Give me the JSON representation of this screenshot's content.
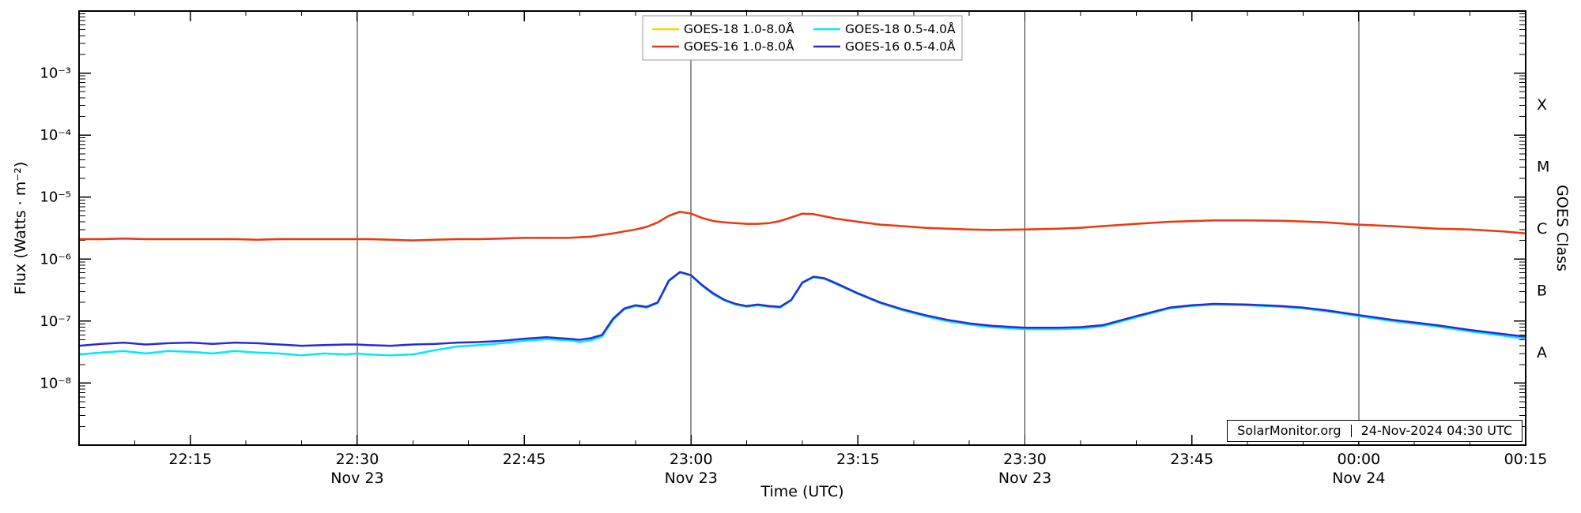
{
  "footer": {
    "site": "SolarMonitor.org",
    "timestamp": "24-Nov-2024 04:30 UTC"
  },
  "chart_data": {
    "type": "line",
    "title": "",
    "xlabel": "Time (UTC)",
    "ylabel": "Flux (Watts · m⁻²)",
    "ylabel_right": "GOES Class",
    "y_scale": "log",
    "ylim_log10": [
      -9,
      -2
    ],
    "xlim_minutes": [
      0,
      130
    ],
    "x_minor_step": 5,
    "legend_position": "top-center",
    "grid_color": "#2a2a2a",
    "x_ticks": [
      {
        "t": 10,
        "label": "22:15"
      },
      {
        "t": 25,
        "label": "22:30",
        "date": "Nov 23"
      },
      {
        "t": 40,
        "label": "22:45"
      },
      {
        "t": 55,
        "label": "23:00",
        "date": "Nov 23"
      },
      {
        "t": 70,
        "label": "23:15"
      },
      {
        "t": 85,
        "label": "23:30",
        "date": "Nov 23"
      },
      {
        "t": 100,
        "label": "23:45"
      },
      {
        "t": 115,
        "label": "00:00",
        "date": "Nov 24"
      },
      {
        "t": 130,
        "label": "00:15"
      }
    ],
    "gridline_ts": [
      25,
      55,
      85,
      115
    ],
    "y_ticks": [
      {
        "exp": -3,
        "label": "10⁻³"
      },
      {
        "exp": -4,
        "label": "10⁻⁴"
      },
      {
        "exp": -5,
        "label": "10⁻⁵"
      },
      {
        "exp": -6,
        "label": "10⁻⁶"
      },
      {
        "exp": -7,
        "label": "10⁻⁷"
      },
      {
        "exp": -8,
        "label": "10⁻⁸"
      }
    ],
    "class_ticks": [
      {
        "log": -3.5,
        "label": "X"
      },
      {
        "log": -4.5,
        "label": "M"
      },
      {
        "log": -5.5,
        "label": "C"
      },
      {
        "log": -6.5,
        "label": "B"
      },
      {
        "log": -7.5,
        "label": "A"
      }
    ],
    "x_minutes": [
      0,
      2,
      4,
      6,
      8,
      10,
      12,
      14,
      16,
      18,
      20,
      22,
      24,
      25,
      26,
      28,
      30,
      32,
      34,
      36,
      38,
      40,
      42,
      44,
      45,
      46,
      47,
      48,
      49,
      50,
      51,
      52,
      53,
      54,
      55,
      56,
      57,
      58,
      59,
      60,
      61,
      62,
      63,
      64,
      65,
      66,
      67,
      68,
      70,
      72,
      74,
      76,
      78,
      80,
      82,
      85,
      88,
      90,
      92,
      95,
      98,
      100,
      102,
      105,
      108,
      110,
      112,
      115,
      118,
      120,
      122,
      125,
      128,
      130
    ],
    "series": [
      {
        "name": "GOES-18 1.0-8.0Å",
        "color": "#ffd200",
        "values": [
          2.1e-06,
          2.1e-06,
          2.15e-06,
          2.1e-06,
          2.1e-06,
          2.1e-06,
          2.1e-06,
          2.1e-06,
          2.05e-06,
          2.1e-06,
          2.1e-06,
          2.1e-06,
          2.1e-06,
          2.1e-06,
          2.1e-06,
          2.05e-06,
          2e-06,
          2.05e-06,
          2.1e-06,
          2.1e-06,
          2.15e-06,
          2.2e-06,
          2.2e-06,
          2.2e-06,
          2.25e-06,
          2.3e-06,
          2.45e-06,
          2.6e-06,
          2.8e-06,
          3e-06,
          3.3e-06,
          3.9e-06,
          5e-06,
          5.8e-06,
          5.4e-06,
          4.6e-06,
          4.1e-06,
          3.9e-06,
          3.8e-06,
          3.7e-06,
          3.7e-06,
          3.8e-06,
          4.1e-06,
          4.7e-06,
          5.4e-06,
          5.3e-06,
          4.9e-06,
          4.5e-06,
          4e-06,
          3.6e-06,
          3.4e-06,
          3.2e-06,
          3.1e-06,
          3e-06,
          2.95e-06,
          3e-06,
          3.1e-06,
          3.2e-06,
          3.4e-06,
          3.7e-06,
          4e-06,
          4.1e-06,
          4.2e-06,
          4.2e-06,
          4.15e-06,
          4.05e-06,
          3.9e-06,
          3.6e-06,
          3.4e-06,
          3.25e-06,
          3.1e-06,
          3e-06,
          2.8e-06,
          2.6e-06
        ]
      },
      {
        "name": "GOES-16 1.0-8.0Å",
        "color": "#e8391c",
        "values": [
          2.1e-06,
          2.1e-06,
          2.15e-06,
          2.1e-06,
          2.1e-06,
          2.1e-06,
          2.1e-06,
          2.1e-06,
          2.05e-06,
          2.1e-06,
          2.1e-06,
          2.1e-06,
          2.1e-06,
          2.1e-06,
          2.1e-06,
          2.05e-06,
          2e-06,
          2.05e-06,
          2.1e-06,
          2.1e-06,
          2.15e-06,
          2.2e-06,
          2.2e-06,
          2.2e-06,
          2.25e-06,
          2.3e-06,
          2.45e-06,
          2.6e-06,
          2.8e-06,
          3e-06,
          3.3e-06,
          3.9e-06,
          5e-06,
          5.8e-06,
          5.4e-06,
          4.6e-06,
          4.1e-06,
          3.9e-06,
          3.8e-06,
          3.7e-06,
          3.7e-06,
          3.8e-06,
          4.1e-06,
          4.7e-06,
          5.4e-06,
          5.3e-06,
          4.9e-06,
          4.5e-06,
          4e-06,
          3.6e-06,
          3.4e-06,
          3.2e-06,
          3.1e-06,
          3e-06,
          2.95e-06,
          3e-06,
          3.1e-06,
          3.2e-06,
          3.4e-06,
          3.7e-06,
          4e-06,
          4.1e-06,
          4.2e-06,
          4.2e-06,
          4.15e-06,
          4.05e-06,
          3.9e-06,
          3.6e-06,
          3.4e-06,
          3.25e-06,
          3.1e-06,
          3e-06,
          2.8e-06,
          2.6e-06
        ]
      },
      {
        "name": "GOES-18 0.5-4.0Å",
        "color": "#00e8ff",
        "values": [
          2.9e-08,
          3.1e-08,
          3.3e-08,
          3e-08,
          3.3e-08,
          3.2e-08,
          3e-08,
          3.3e-08,
          3.1e-08,
          3e-08,
          2.8e-08,
          3e-08,
          2.9e-08,
          3e-08,
          2.9e-08,
          2.8e-08,
          2.9e-08,
          3.4e-08,
          3.9e-08,
          4.1e-08,
          4.4e-08,
          4.8e-08,
          5.1e-08,
          4.9e-08,
          4.6e-08,
          4.9e-08,
          5.6e-08,
          1.05e-07,
          1.55e-07,
          1.75e-07,
          1.65e-07,
          1.95e-07,
          4.4e-07,
          6.1e-07,
          5.4e-07,
          3.7e-07,
          2.7e-07,
          2.15e-07,
          1.85e-07,
          1.7e-07,
          1.8e-07,
          1.7e-07,
          1.65e-07,
          2.15e-07,
          4.1e-07,
          5.1e-07,
          4.8e-07,
          4e-07,
          2.75e-07,
          1.95e-07,
          1.5e-07,
          1.2e-07,
          1e-07,
          8.8e-08,
          8e-08,
          7.4e-08,
          7.4e-08,
          7.6e-08,
          8.2e-08,
          1.15e-07,
          1.6e-07,
          1.75e-07,
          1.85e-07,
          1.8e-07,
          1.7e-07,
          1.6e-07,
          1.45e-07,
          1.2e-07,
          1e-07,
          9.1e-08,
          8.2e-08,
          6.8e-08,
          5.8e-08,
          5.2e-08
        ]
      },
      {
        "name": "GOES-16 0.5-4.0Å",
        "color": "#2b2bd5",
        "values": [
          4e-08,
          4.3e-08,
          4.5e-08,
          4.2e-08,
          4.4e-08,
          4.5e-08,
          4.3e-08,
          4.5e-08,
          4.4e-08,
          4.2e-08,
          4e-08,
          4.1e-08,
          4.2e-08,
          4.2e-08,
          4.1e-08,
          4e-08,
          4.2e-08,
          4.3e-08,
          4.5e-08,
          4.6e-08,
          4.8e-08,
          5.2e-08,
          5.5e-08,
          5.2e-08,
          5e-08,
          5.3e-08,
          6e-08,
          1.1e-07,
          1.6e-07,
          1.8e-07,
          1.7e-07,
          2e-07,
          4.5e-07,
          6.2e-07,
          5.5e-07,
          3.8e-07,
          2.8e-07,
          2.2e-07,
          1.9e-07,
          1.75e-07,
          1.85e-07,
          1.75e-07,
          1.7e-07,
          2.2e-07,
          4.2e-07,
          5.2e-07,
          4.9e-07,
          4.1e-07,
          2.8e-07,
          2e-07,
          1.55e-07,
          1.25e-07,
          1.05e-07,
          9.2e-08,
          8.4e-08,
          7.8e-08,
          7.8e-08,
          8e-08,
          8.6e-08,
          1.2e-07,
          1.65e-07,
          1.8e-07,
          1.9e-07,
          1.85e-07,
          1.75e-07,
          1.65e-07,
          1.5e-07,
          1.25e-07,
          1.05e-07,
          9.5e-08,
          8.6e-08,
          7.2e-08,
          6.2e-08,
          5.6e-08
        ]
      }
    ],
    "legend_columns": [
      [
        0,
        1
      ],
      [
        2,
        3
      ]
    ]
  }
}
